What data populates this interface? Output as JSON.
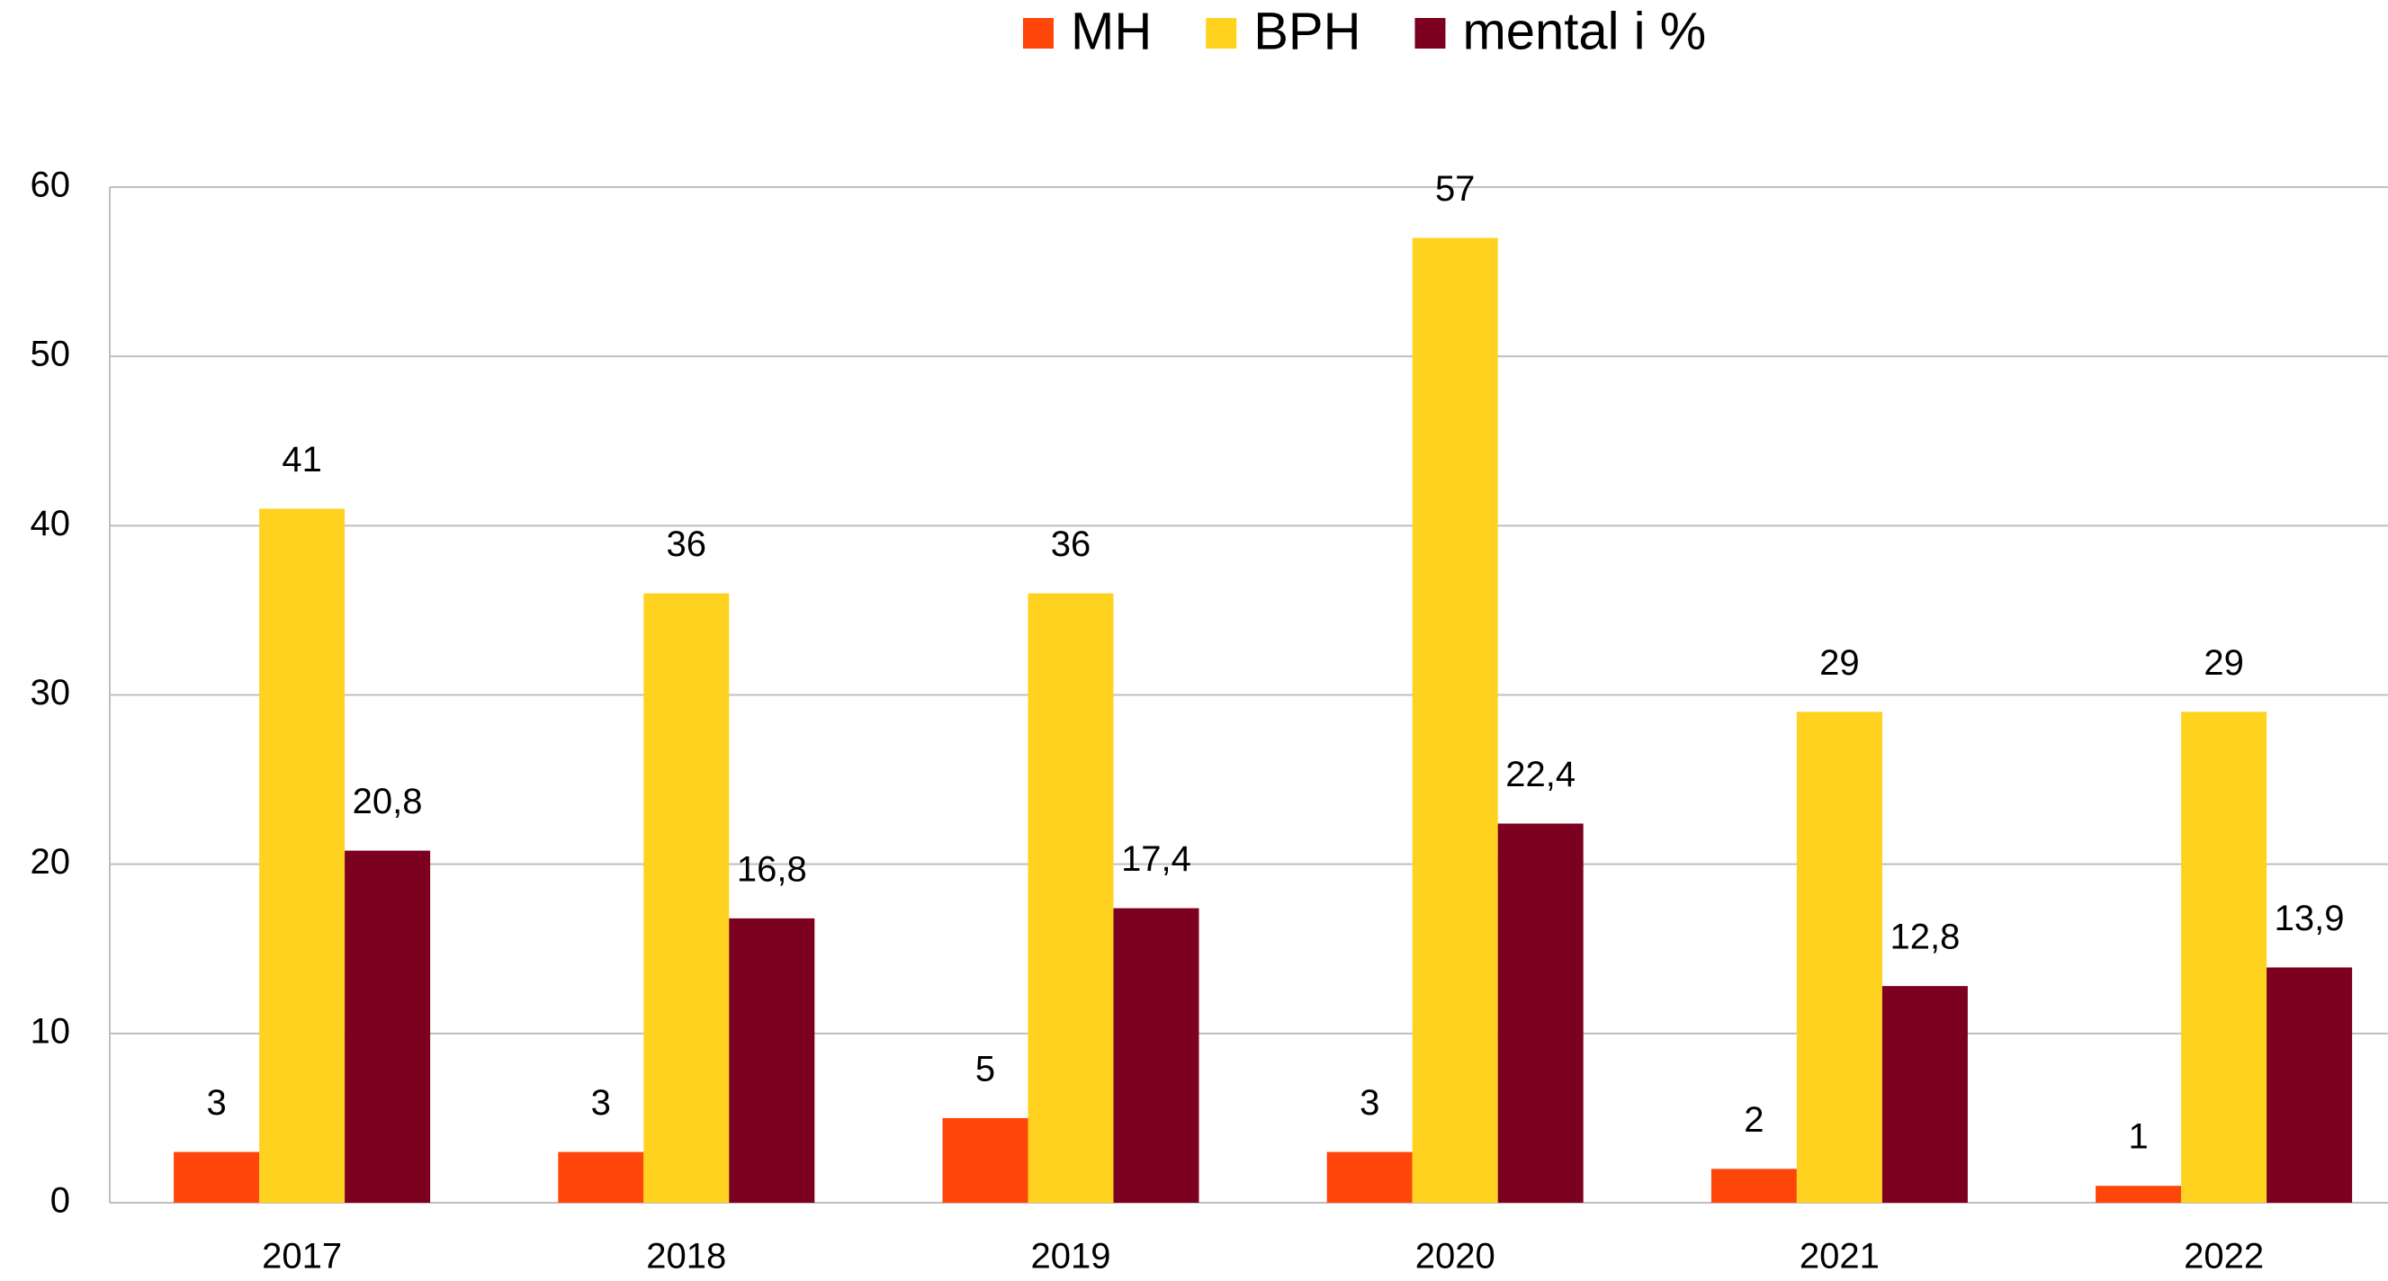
{
  "chart_data": {
    "type": "bar",
    "categories": [
      "2017",
      "2018",
      "2019",
      "2020",
      "2021",
      "2022"
    ],
    "series": [
      {
        "name": "MH",
        "color": "#ff460a",
        "values": [
          3,
          3,
          5,
          3,
          2,
          1
        ]
      },
      {
        "name": "BPH",
        "color": "#ffd21f",
        "values": [
          41,
          36,
          36,
          57,
          29,
          29
        ]
      },
      {
        "name": "mental i %",
        "color": "#7c0020",
        "values": [
          20.8,
          16.8,
          17.4,
          22.4,
          12.8,
          13.9
        ],
        "value_labels": [
          "20,8",
          "16,8",
          "17,4",
          "22,4",
          "12,8",
          "13,9"
        ]
      }
    ],
    "ylim": [
      0,
      60
    ],
    "yticks": [
      0,
      10,
      20,
      30,
      40,
      50,
      60
    ],
    "grid": true,
    "legend": "top"
  }
}
